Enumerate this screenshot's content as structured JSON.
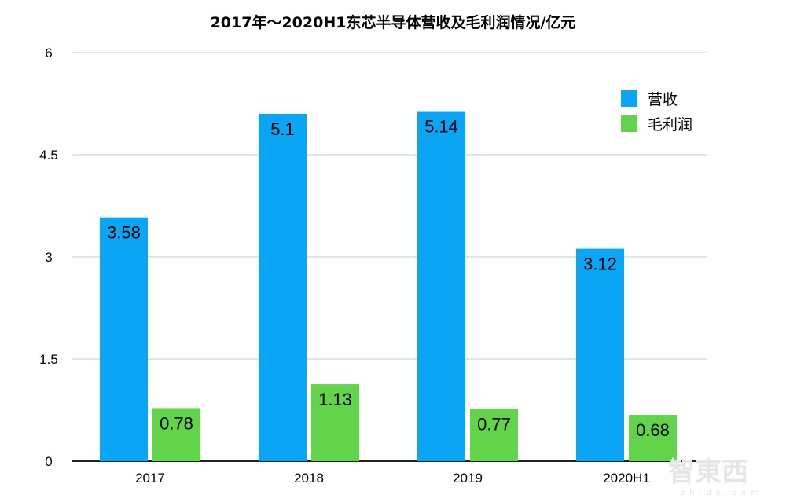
{
  "chart_data": {
    "type": "bar",
    "title": "2017年～2020H1东芯半导体营收及毛利润情况/亿元",
    "categories": [
      "2017",
      "2018",
      "2019",
      "2020H1"
    ],
    "series": [
      {
        "name": "营收",
        "values": [
          3.58,
          5.1,
          5.14,
          3.12
        ],
        "color": "#0aa5f5",
        "labels": [
          "3.58",
          "5.1",
          "5.14",
          "3.12"
        ]
      },
      {
        "name": "毛利润",
        "values": [
          0.78,
          1.13,
          0.77,
          0.68
        ],
        "color": "#62d44a",
        "labels": [
          "0.78",
          "1.13",
          "0.77",
          "0.68"
        ]
      }
    ],
    "ylim": [
      0,
      6
    ],
    "yticks": [
      "0",
      "1.5",
      "3",
      "4.5",
      "6"
    ],
    "grid": true,
    "legend": "top-right",
    "xlabel": "",
    "ylabel": ""
  },
  "watermark": {
    "text": "智東西",
    "subtext": "zhidx.com"
  }
}
